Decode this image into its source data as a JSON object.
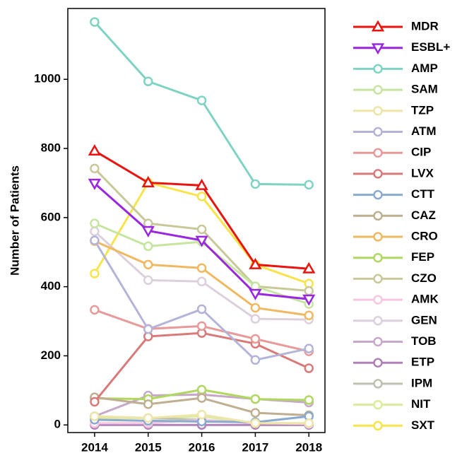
{
  "chart_data": {
    "type": "line",
    "y_label": "Number of Patients",
    "x": [
      2014,
      2015,
      2016,
      2017,
      2018
    ],
    "xlim": [
      2013.5,
      2018.3
    ],
    "xticks": [
      2014,
      2015,
      2016,
      2017,
      2018
    ],
    "ylim": [
      -22,
      1205
    ],
    "yticks": [
      0,
      200,
      400,
      600,
      800,
      1000
    ],
    "series": [
      {
        "name": "MDR",
        "color": "#e8140f",
        "marker": "triangle-up",
        "values": [
          793,
          701,
          693,
          464,
          452
        ]
      },
      {
        "name": "ESBL+",
        "color": "#9a27e0",
        "marker": "triangle-down",
        "values": [
          699,
          562,
          534,
          380,
          364
        ]
      },
      {
        "name": "AMP",
        "color": "#7fd3c3",
        "marker": "circle",
        "values": [
          1166,
          994,
          939,
          697,
          695
        ]
      },
      {
        "name": "SAM",
        "color": "#c6e5a0",
        "marker": "circle",
        "values": [
          583,
          517,
          530,
          401,
          350
        ]
      },
      {
        "name": "TZP",
        "color": "#ede6a8",
        "marker": "circle",
        "values": [
          25,
          20,
          30,
          5,
          5
        ]
      },
      {
        "name": "ATM",
        "color": "#b4b4d8",
        "marker": "circle",
        "values": [
          534,
          277,
          335,
          188,
          221
        ]
      },
      {
        "name": "CIP",
        "color": "#e89a9a",
        "marker": "circle",
        "values": [
          333,
          278,
          286,
          249,
          213
        ]
      },
      {
        "name": "LVX",
        "color": "#d97a7a",
        "marker": "circle",
        "values": [
          67,
          256,
          266,
          235,
          164
        ]
      },
      {
        "name": "CTT",
        "color": "#8aaad0",
        "marker": "circle",
        "values": [
          15,
          12,
          10,
          8,
          25
        ]
      },
      {
        "name": "CAZ",
        "color": "#bfae90",
        "marker": "circle",
        "values": [
          80,
          60,
          78,
          35,
          28
        ]
      },
      {
        "name": "CRO",
        "color": "#f0b860",
        "marker": "circle",
        "values": [
          532,
          464,
          454,
          339,
          317
        ]
      },
      {
        "name": "FEP",
        "color": "#b0d860",
        "marker": "circle",
        "values": [
          77,
          75,
          102,
          75,
          72
        ]
      },
      {
        "name": "CZO",
        "color": "#c8c898",
        "marker": "circle",
        "values": [
          742,
          583,
          566,
          401,
          388
        ]
      },
      {
        "name": "AMK",
        "color": "#f4c8e0",
        "marker": "circle",
        "values": [
          5,
          5,
          15,
          5,
          3
        ]
      },
      {
        "name": "GEN",
        "color": "#ddd0dd",
        "marker": "circle",
        "values": [
          560,
          419,
          415,
          307,
          305
        ]
      },
      {
        "name": "TOB",
        "color": "#c8a8c8",
        "marker": "circle",
        "values": [
          25,
          85,
          88,
          75,
          65
        ]
      },
      {
        "name": "ETP",
        "color": "#b080b8",
        "marker": "circle",
        "values": [
          0,
          0,
          0,
          0,
          0
        ]
      },
      {
        "name": "IPM",
        "color": "#c0c0b0",
        "marker": "circle",
        "values": [
          25,
          20,
          15,
          5,
          3
        ]
      },
      {
        "name": "NIT",
        "color": "#d8ec9c",
        "marker": "circle",
        "values": [
          20,
          20,
          25,
          5,
          5
        ]
      },
      {
        "name": "SXT",
        "color": "#f8e44a",
        "marker": "circle",
        "values": [
          438,
          701,
          661,
          464,
          409
        ]
      }
    ]
  }
}
